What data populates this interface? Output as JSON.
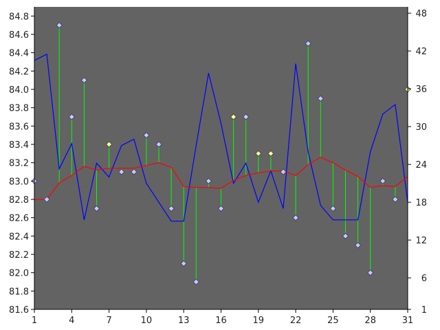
{
  "chart_data": {
    "type": "line",
    "x": [
      1,
      2,
      3,
      4,
      5,
      6,
      7,
      8,
      9,
      10,
      11,
      12,
      13,
      14,
      15,
      16,
      17,
      18,
      19,
      20,
      21,
      22,
      23,
      24,
      25,
      26,
      27,
      28,
      29,
      30,
      31
    ],
    "x_ticks": [
      1,
      4,
      7,
      10,
      13,
      16,
      19,
      22,
      25,
      28,
      31
    ],
    "y_left": {
      "ticks": [
        81.6,
        81.8,
        82.0,
        82.2,
        82.4,
        82.6,
        82.8,
        83.0,
        83.2,
        83.4,
        83.6,
        83.8,
        84.0,
        84.2,
        84.4,
        84.6,
        84.8
      ],
      "tick_labels": [
        "81.6",
        "81.8",
        "82.0",
        "82.2",
        "82.4",
        "82.6",
        "82.8",
        "83.0",
        "83.2",
        "83.4",
        "83.6",
        "83.8",
        "84.0",
        "84.2",
        "84.4",
        "84.6",
        "84.8"
      ],
      "range": [
        81.6,
        84.9
      ]
    },
    "y_right": {
      "ticks": [
        1,
        6,
        12,
        18,
        24,
        30,
        36,
        42,
        48
      ],
      "tick_labels": [
        "1",
        "6",
        "12",
        "18",
        "24",
        "30",
        "36",
        "42",
        "48"
      ],
      "range": [
        1,
        49
      ]
    },
    "grid": false,
    "colors": {
      "plot_background": "#636363",
      "price_points": "#c8c8ff",
      "highlight_points": "#ffff80",
      "stems": "#00ff00",
      "moving_average": "#ff0000",
      "right_axis_series": "#0000ff"
    },
    "series": [
      {
        "kind": "points-with-stems",
        "axis": "left",
        "values": [
          83.0,
          82.8,
          84.7,
          83.7,
          84.1,
          82.7,
          83.4,
          83.1,
          83.1,
          83.5,
          83.4,
          82.7,
          82.1,
          81.9,
          83.0,
          82.7,
          83.7,
          83.7,
          83.3,
          83.3,
          83.1,
          82.6,
          84.5,
          83.9,
          82.7,
          82.4,
          82.3,
          82.0,
          83.0,
          82.8,
          84.0
        ],
        "highlighted_x": [
          7,
          17,
          19,
          20,
          31
        ]
      },
      {
        "kind": "line",
        "axis": "left",
        "values": [
          82.8,
          82.8,
          82.98,
          83.06,
          83.16,
          83.12,
          83.14,
          83.14,
          83.14,
          83.17,
          83.2,
          83.15,
          82.94,
          82.93,
          82.93,
          82.92,
          83.01,
          83.06,
          83.09,
          83.11,
          83.11,
          83.06,
          83.18,
          83.26,
          83.2,
          83.12,
          83.05,
          82.93,
          82.95,
          82.94,
          83.05
        ]
      },
      {
        "kind": "line",
        "axis": "right",
        "values": [
          40.5,
          41.5,
          23.3,
          27.3,
          15.2,
          24.2,
          22,
          27,
          28,
          21,
          18,
          15,
          15,
          27,
          38.5,
          30.5,
          21,
          24.2,
          18,
          23,
          17,
          40,
          26,
          17.5,
          15.2,
          15.2,
          15.2,
          26,
          32,
          33.5,
          18
        ]
      }
    ]
  }
}
